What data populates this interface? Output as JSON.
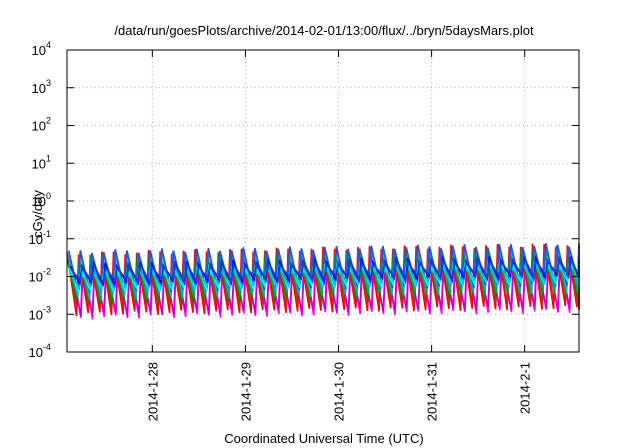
{
  "chart_data": {
    "type": "line",
    "title": "/data/run/goesPlots/archive/2014-02-01/13:00/flux/../bryn/5daysMars.plot",
    "xlabel": "Coordinated Universal Time (UTC)",
    "ylabel": "cGy/day",
    "yscale": "log",
    "ylim": [
      0.0001,
      10000
    ],
    "xlim": [
      "2014-01-27T02:00",
      "2014-02-01T14:00"
    ],
    "y_ticks": [
      {
        "base": "10",
        "exp": "-4"
      },
      {
        "base": "10",
        "exp": "-3"
      },
      {
        "base": "10",
        "exp": "-2"
      },
      {
        "base": "10",
        "exp": "-1"
      },
      {
        "base": "10",
        "exp": "0"
      },
      {
        "base": "10",
        "exp": "1"
      },
      {
        "base": "10",
        "exp": "2"
      },
      {
        "base": "10",
        "exp": "3"
      },
      {
        "base": "10",
        "exp": "4"
      }
    ],
    "x_ticks": [
      {
        "date": "2014-01-28",
        "label": "2014-1-28"
      },
      {
        "date": "2014-01-29",
        "label": "2014-1-29"
      },
      {
        "date": "2014-01-30",
        "label": "2014-1-30"
      },
      {
        "date": "2014-01-31",
        "label": "2014-1-31"
      },
      {
        "date": "2014-02-01",
        "label": "2014-2-1"
      }
    ],
    "grid": true,
    "legend": "none",
    "sawtooth_period_hours": 3,
    "series": [
      {
        "color": "#ff00ff",
        "peak": [
          0.02,
          0.03
        ],
        "trough": [
          0.0008,
          0.0012
        ],
        "phase": 0.38
      },
      {
        "color": "#cc00cc",
        "peak": [
          0.022,
          0.032
        ],
        "trough": [
          0.001,
          0.0015
        ],
        "phase": 0.36
      },
      {
        "color": "#ff0000",
        "peak": [
          0.04,
          0.07
        ],
        "trough": [
          0.001,
          0.0015
        ],
        "phase": 0.0
      },
      {
        "color": "#cc2222",
        "peak": [
          0.035,
          0.06
        ],
        "trough": [
          0.0015,
          0.002
        ],
        "phase": 0.03
      },
      {
        "color": "#008800",
        "peak": [
          0.03,
          0.05
        ],
        "trough": [
          0.002,
          0.0035
        ],
        "phase": 0.06
      },
      {
        "color": "#00aa44",
        "peak": [
          0.025,
          0.04
        ],
        "trough": [
          0.0025,
          0.004
        ],
        "phase": 0.09
      },
      {
        "color": "#4488ff",
        "peak": [
          0.04,
          0.06
        ],
        "trough": [
          0.003,
          0.005
        ],
        "phase": 0.12
      },
      {
        "color": "#2255dd",
        "peak": [
          0.045,
          0.07
        ],
        "trough": [
          0.004,
          0.006
        ],
        "phase": 0.15
      },
      {
        "color": "#00ffff",
        "peak": [
          0.015,
          0.025
        ],
        "trough": [
          0.004,
          0.007
        ],
        "phase": 0.2
      },
      {
        "color": "#00cccc",
        "peak": [
          0.012,
          0.02
        ],
        "trough": [
          0.005,
          0.008
        ],
        "phase": 0.24
      },
      {
        "color": "#0000ff",
        "peak": [
          0.02,
          0.03
        ],
        "trough": [
          0.006,
          0.01
        ],
        "phase": 0.28
      },
      {
        "color": "#1144bb",
        "peak": [
          0.018,
          0.028
        ],
        "trough": [
          0.007,
          0.011
        ],
        "phase": 0.31
      }
    ]
  }
}
